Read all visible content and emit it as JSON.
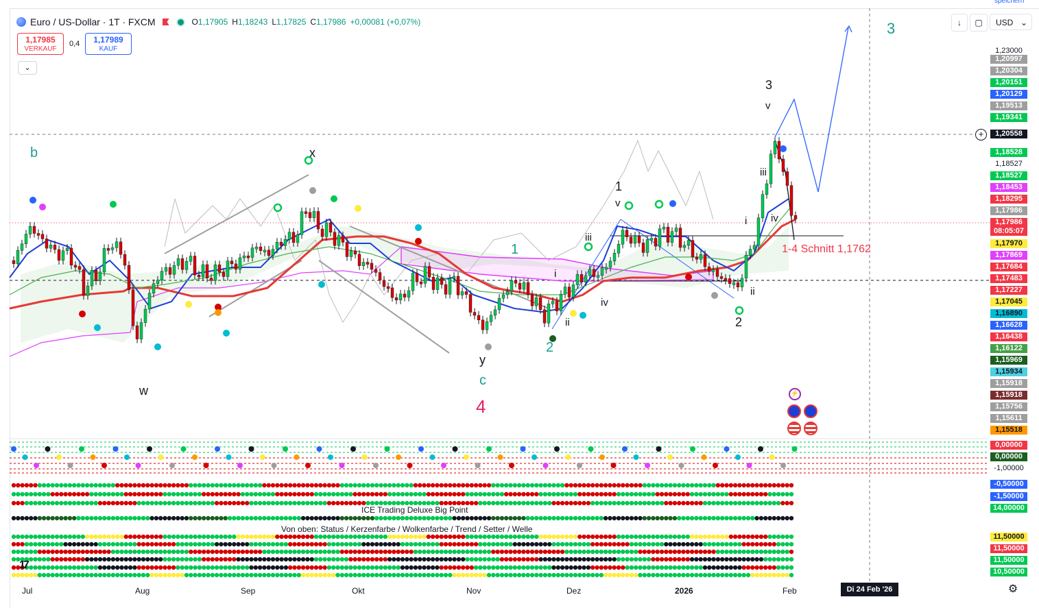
{
  "header": {
    "symbol_title": "Euro / US-Dollar · 1T · FXCM",
    "ohlc": [
      {
        "label": "O",
        "value": "1,17905"
      },
      {
        "label": "H",
        "value": "1,18243"
      },
      {
        "label": "L",
        "value": "1,17825"
      },
      {
        "label": "C",
        "value": "1,17986"
      }
    ],
    "change": "+0,00081 (+0,07%)"
  },
  "trade": {
    "sell_price": "1,17985",
    "sell_label": "VERKAUF",
    "spread": "0,4",
    "buy_price": "1,17989",
    "buy_label": "KAUF"
  },
  "toolbar": {
    "currency": "USD",
    "save_hint": "speichern"
  },
  "wave_labels": [
    {
      "text": "b",
      "color": "#1a9e8e"
    },
    {
      "text": "x",
      "color": "#131722"
    },
    {
      "text": "w",
      "color": "#131722"
    },
    {
      "text": "y",
      "color": "#131722"
    },
    {
      "text": "c",
      "color": "#1a9e8e"
    },
    {
      "text": "4",
      "color": "#e91e63"
    },
    {
      "text": "1",
      "color": "#131722"
    },
    {
      "text": "v",
      "color": "#131722"
    },
    {
      "text": "iii",
      "color": "#131722"
    },
    {
      "text": "i",
      "color": "#131722"
    },
    {
      "text": "ii",
      "color": "#131722"
    },
    {
      "text": "iv",
      "color": "#131722"
    },
    {
      "text": "2",
      "color": "#1a9e8e"
    },
    {
      "text": "1",
      "color": "#1a9e8e"
    },
    {
      "text": "3",
      "color": "#131722"
    },
    {
      "text": "v",
      "color": "#131722"
    },
    {
      "text": "iii",
      "color": "#131722"
    },
    {
      "text": "i",
      "color": "#131722"
    },
    {
      "text": "iv",
      "color": "#131722"
    },
    {
      "text": "ii",
      "color": "#131722"
    },
    {
      "text": "2",
      "color": "#131722"
    },
    {
      "text": "3",
      "color": "#1a9e8e"
    }
  ],
  "annotation": "1-4 Schnitt 1,1762",
  "indicator_texts": {
    "big_point": "ICE Trading Deluxe Big Point",
    "legend": "Von oben: Status / Kerzenfarbe / Wolkenfarbe / Trend / Setter / Welle"
  },
  "price_axis": [
    {
      "text": "1,23000",
      "bg": "",
      "fg": "#131722"
    },
    {
      "text": "1,20997",
      "bg": "#9e9e9e",
      "fg": "#ffffff"
    },
    {
      "text": "1,20304",
      "bg": "#9e9e9e",
      "fg": "#ffffff"
    },
    {
      "text": "1,20151",
      "bg": "#00c853",
      "fg": "#ffffff"
    },
    {
      "text": "1,20129",
      "bg": "#2962ff",
      "fg": "#ffffff"
    },
    {
      "text": "1,19513",
      "bg": "#9e9e9e",
      "fg": "#ffffff"
    },
    {
      "text": "1,19341",
      "bg": "#00c853",
      "fg": "#ffffff"
    },
    {
      "text": "1,20558",
      "bg": "#131722",
      "fg": "#ffffff"
    },
    {
      "text": "1,18528",
      "bg": "#00c853",
      "fg": "#ffffff"
    },
    {
      "text": "1,18527",
      "bg": "",
      "fg": "#131722"
    },
    {
      "text": "1,18527",
      "bg": "#00c853",
      "fg": "#ffffff"
    },
    {
      "text": "1,18453",
      "bg": "#e040fb",
      "fg": "#ffffff"
    },
    {
      "text": "1,18295",
      "bg": "#f23645",
      "fg": "#ffffff"
    },
    {
      "text": "1,17986",
      "bg": "#9e9e9e",
      "fg": "#ffffff"
    },
    {
      "text": "1,17986",
      "bg": "#f23645",
      "fg": "#ffffff"
    },
    {
      "text": "08:05:07",
      "bg": "#f23645",
      "fg": "#ffffff"
    },
    {
      "text": "1,17970",
      "bg": "#ffeb3b",
      "fg": "#131722"
    },
    {
      "text": "1,17869",
      "bg": "#e040fb",
      "fg": "#ffffff"
    },
    {
      "text": "1,17684",
      "bg": "#f23645",
      "fg": "#ffffff"
    },
    {
      "text": "1,17483",
      "bg": "#f23645",
      "fg": "#ffffff"
    },
    {
      "text": "1,17227",
      "bg": "#f23645",
      "fg": "#ffffff"
    },
    {
      "text": "1,17045",
      "bg": "#ffeb3b",
      "fg": "#131722"
    },
    {
      "text": "1,16890",
      "bg": "#00bcd4",
      "fg": "#131722"
    },
    {
      "text": "1,16628",
      "bg": "#2962ff",
      "fg": "#ffffff"
    },
    {
      "text": "1,16438",
      "bg": "#f23645",
      "fg": "#ffffff"
    },
    {
      "text": "1,16122",
      "bg": "#43a047",
      "fg": "#ffffff"
    },
    {
      "text": "1,15969",
      "bg": "#1b5e20",
      "fg": "#ffffff"
    },
    {
      "text": "1,15934",
      "bg": "#4dd0e1",
      "fg": "#131722"
    },
    {
      "text": "1,15918",
      "bg": "#9e9e9e",
      "fg": "#ffffff"
    },
    {
      "text": "1,15918",
      "bg": "#7b2d2d",
      "fg": "#ffffff"
    },
    {
      "text": "1,15756",
      "bg": "#9e9e9e",
      "fg": "#ffffff"
    },
    {
      "text": "1,15611",
      "bg": "#9e9e9e",
      "fg": "#ffffff"
    },
    {
      "text": "1,15518",
      "bg": "#ff9800",
      "fg": "#131722"
    },
    {
      "text": "0,00000",
      "bg": "#f23645",
      "fg": "#ffffff"
    },
    {
      "text": "0,00000",
      "bg": "#1b5e20",
      "fg": "#ffffff"
    },
    {
      "text": "-1,00000",
      "bg": "",
      "fg": "#131722"
    },
    {
      "text": "-0,50000",
      "bg": "#2962ff",
      "fg": "#ffffff"
    },
    {
      "text": "-1,50000",
      "bg": "#2962ff",
      "fg": "#ffffff"
    },
    {
      "text": "14,00000",
      "bg": "#00c853",
      "fg": "#ffffff"
    },
    {
      "text": "11,50000",
      "bg": "#ffeb3b",
      "fg": "#131722"
    },
    {
      "text": "11,50000",
      "bg": "#f23645",
      "fg": "#ffffff"
    },
    {
      "text": "11,50000",
      "bg": "#00c853",
      "fg": "#ffffff"
    },
    {
      "text": "10,50000",
      "bg": "#00c853",
      "fg": "#ffffff"
    }
  ],
  "time_axis": [
    "Jul",
    "Aug",
    "Sep",
    "Okt",
    "Nov",
    "Dez",
    "2026",
    "Feb"
  ],
  "crosshair_date": "Di 24 Feb '26"
}
